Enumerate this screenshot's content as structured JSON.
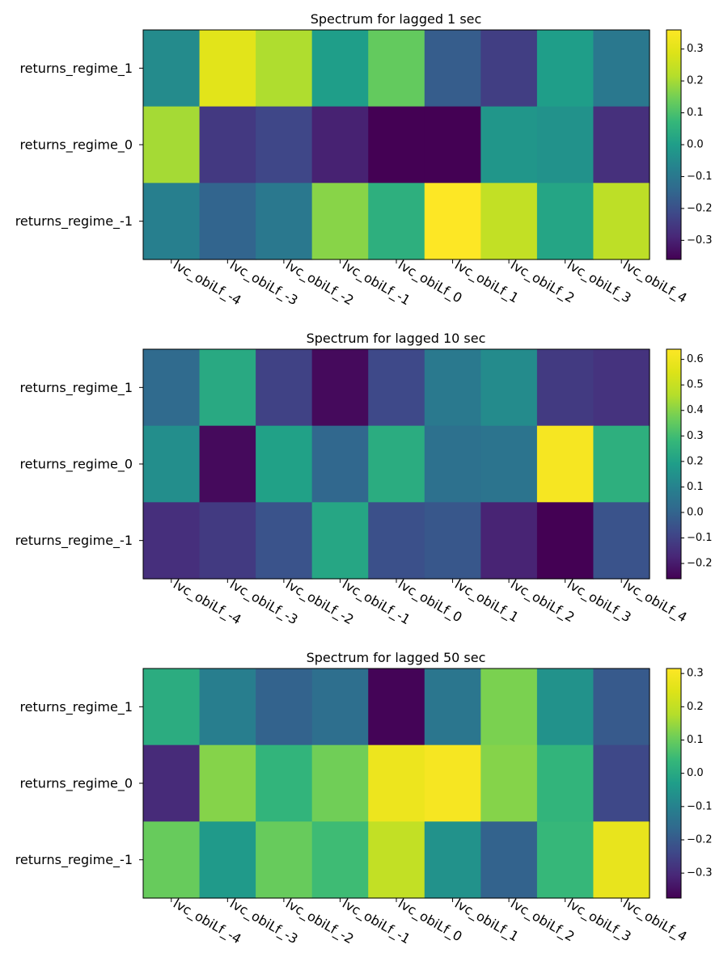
{
  "chart_data": [
    {
      "type": "heatmap",
      "title": "Spectrum for lagged 1 sec",
      "rows": [
        "returns_regime_1",
        "returns_regime_0",
        "returns_regime_-1"
      ],
      "columns": [
        "lvc_obiLf_-4",
        "lvc_obiLf_-3",
        "lvc_obiLf_-2",
        "lvc_obiLf_-1",
        "lvc_obiLf_0",
        "lvc_obiLf_1",
        "lvc_obiLf_2",
        "lvc_obiLf_3",
        "lvc_obiLf_4"
      ],
      "values": [
        [
          -0.05,
          0.3,
          0.21,
          0.0,
          0.13,
          -0.17,
          -0.24,
          0.0,
          -0.1
        ],
        [
          0.2,
          -0.25,
          -0.22,
          -0.3,
          -0.36,
          -0.36,
          -0.02,
          -0.03,
          -0.27
        ],
        [
          -0.08,
          -0.15,
          -0.1,
          0.17,
          0.05,
          0.36,
          0.24,
          0.02,
          0.23
        ]
      ],
      "colorbar": {
        "range": [
          -0.36,
          0.36
        ],
        "ticks": [
          "0.3",
          "0.2",
          "0.1",
          "0.0",
          "−0.1",
          "−0.2",
          "−0.3"
        ],
        "tick_values": [
          0.3,
          0.2,
          0.1,
          0.0,
          -0.1,
          -0.2,
          -0.3
        ]
      }
    },
    {
      "type": "heatmap",
      "title": "Spectrum for lagged 10 sec",
      "rows": [
        "returns_regime_1",
        "returns_regime_0",
        "returns_regime_-1"
      ],
      "columns": [
        "lvc_obiLf_-4",
        "lvc_obiLf_-3",
        "lvc_obiLf_-2",
        "lvc_obiLf_-1",
        "lvc_obiLf_0",
        "lvc_obiLf_1",
        "lvc_obiLf_2",
        "lvc_obiLf_3",
        "lvc_obiLf_4"
      ],
      "values": [
        [
          0.02,
          0.23,
          -0.1,
          -0.24,
          -0.08,
          0.07,
          0.13,
          -0.12,
          -0.14
        ],
        [
          0.14,
          -0.24,
          0.2,
          0.01,
          0.24,
          0.04,
          0.05,
          0.62,
          0.25
        ],
        [
          -0.15,
          -0.12,
          -0.05,
          0.22,
          -0.06,
          -0.04,
          -0.18,
          -0.26,
          -0.05
        ]
      ],
      "colorbar": {
        "range": [
          -0.26,
          0.64
        ],
        "ticks": [
          "0.6",
          "0.5",
          "0.4",
          "0.3",
          "0.2",
          "0.1",
          "0.0",
          "−0.1",
          "−0.2"
        ],
        "tick_values": [
          0.6,
          0.5,
          0.4,
          0.3,
          0.2,
          0.1,
          0.0,
          -0.1,
          -0.2
        ]
      }
    },
    {
      "type": "heatmap",
      "title": "Spectrum for lagged 50 sec",
      "rows": [
        "returns_regime_1",
        "returns_regime_0",
        "returns_regime_-1"
      ],
      "columns": [
        "lvc_obiLf_-4",
        "lvc_obiLf_-3",
        "lvc_obiLf_-2",
        "lvc_obiLf_-1",
        "lvc_obiLf_0",
        "lvc_obiLf_1",
        "lvc_obiLf_2",
        "lvc_obiLf_3",
        "lvc_obiLf_4"
      ],
      "values": [
        [
          0.01,
          -0.11,
          -0.18,
          -0.15,
          -0.37,
          -0.13,
          0.12,
          -0.06,
          -0.2
        ],
        [
          -0.3,
          0.13,
          0.03,
          0.11,
          0.28,
          0.3,
          0.13,
          0.03,
          -0.24
        ],
        [
          0.1,
          -0.04,
          0.1,
          0.05,
          0.2,
          -0.06,
          -0.18,
          0.04,
          0.27
        ]
      ],
      "colorbar": {
        "range": [
          -0.375,
          0.315
        ],
        "ticks": [
          "0.3",
          "0.2",
          "0.1",
          "0.0",
          "−0.1",
          "−0.2",
          "−0.3"
        ],
        "tick_values": [
          0.3,
          0.2,
          0.1,
          0.0,
          -0.1,
          -0.2,
          -0.3
        ]
      }
    }
  ]
}
